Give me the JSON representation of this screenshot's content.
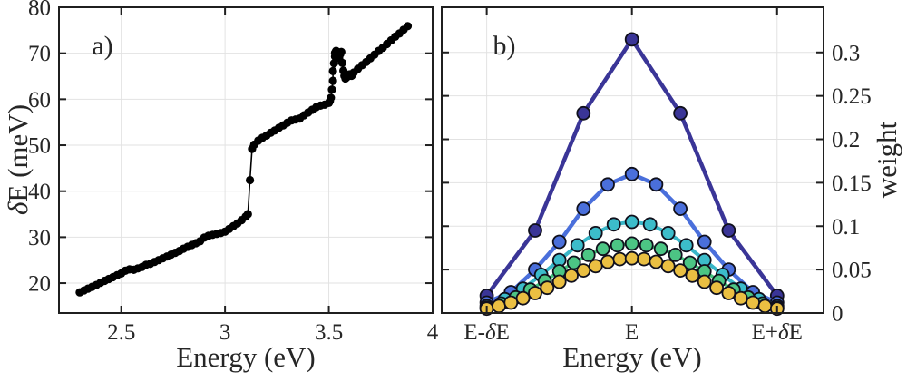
{
  "figure": {
    "bg": "#ffffff",
    "frame_color": "#1f1f1f",
    "grid_color": "#e2e2e2",
    "text_color": "#262626",
    "tick_len": 8
  },
  "chart_data": [
    {
      "id": "a",
      "type": "scatter",
      "panel_label": "a)",
      "xlabel": "Energy (eV)",
      "ylabel": "δE (meV)",
      "ylabel_side": "left",
      "xlim": [
        2.2,
        4.0
      ],
      "ylim": [
        13.5,
        80
      ],
      "xticks": [
        2.5,
        3,
        3.5,
        4
      ],
      "xtick_labels": [
        "2.5",
        "3",
        "3.5",
        "4"
      ],
      "yticks": [
        20,
        30,
        40,
        50,
        60,
        70,
        80
      ],
      "ytick_labels": [
        "20",
        "30",
        "40",
        "50",
        "60",
        "70",
        "80"
      ],
      "grid": true,
      "series": [
        {
          "name": "delta-E-vs-energy",
          "color": "#000000",
          "marker_fill": "#000000",
          "marker_edge": "none",
          "marker_radius": 4.6,
          "line_width": 1.6,
          "points": [
            [
              2.3,
              18.0
            ],
            [
              2.32,
              18.4
            ],
            [
              2.34,
              18.8
            ],
            [
              2.36,
              19.2
            ],
            [
              2.38,
              19.6
            ],
            [
              2.4,
              20.1
            ],
            [
              2.42,
              20.5
            ],
            [
              2.44,
              20.9
            ],
            [
              2.46,
              21.3
            ],
            [
              2.48,
              21.7
            ],
            [
              2.5,
              22.1
            ],
            [
              2.52,
              22.7
            ],
            [
              2.54,
              23.0
            ],
            [
              2.56,
              22.9
            ],
            [
              2.58,
              23.2
            ],
            [
              2.6,
              23.5
            ],
            [
              2.62,
              24.0
            ],
            [
              2.64,
              24.2
            ],
            [
              2.66,
              24.6
            ],
            [
              2.68,
              25.0
            ],
            [
              2.7,
              25.4
            ],
            [
              2.72,
              25.8
            ],
            [
              2.74,
              26.2
            ],
            [
              2.76,
              26.6
            ],
            [
              2.78,
              27.0
            ],
            [
              2.8,
              27.5
            ],
            [
              2.82,
              27.9
            ],
            [
              2.84,
              28.3
            ],
            [
              2.86,
              28.7
            ],
            [
              2.88,
              29.1
            ],
            [
              2.9,
              29.9
            ],
            [
              2.92,
              30.3
            ],
            [
              2.94,
              30.5
            ],
            [
              2.96,
              30.7
            ],
            [
              2.98,
              30.9
            ],
            [
              3.0,
              31.2
            ],
            [
              3.02,
              31.8
            ],
            [
              3.04,
              32.4
            ],
            [
              3.06,
              33.0
            ],
            [
              3.08,
              33.7
            ],
            [
              3.1,
              34.5
            ],
            [
              3.11,
              35.0
            ],
            [
              3.12,
              42.4
            ],
            [
              3.13,
              49.2
            ],
            [
              3.14,
              50.1
            ],
            [
              3.16,
              51.0
            ],
            [
              3.18,
              51.6
            ],
            [
              3.2,
              52.1
            ],
            [
              3.22,
              52.7
            ],
            [
              3.24,
              53.2
            ],
            [
              3.26,
              53.8
            ],
            [
              3.28,
              54.3
            ],
            [
              3.3,
              54.9
            ],
            [
              3.32,
              55.4
            ],
            [
              3.34,
              55.6
            ],
            [
              3.36,
              55.8
            ],
            [
              3.38,
              56.5
            ],
            [
              3.4,
              57.1
            ],
            [
              3.42,
              57.7
            ],
            [
              3.44,
              58.3
            ],
            [
              3.46,
              58.6
            ],
            [
              3.48,
              58.8
            ],
            [
              3.5,
              59.2
            ],
            [
              3.505,
              59.6
            ],
            [
              3.51,
              60.3
            ],
            [
              3.515,
              62.1
            ],
            [
              3.52,
              64.0
            ],
            [
              3.52,
              66.1
            ],
            [
              3.525,
              67.8
            ],
            [
              3.53,
              69.3
            ],
            [
              3.53,
              70.1
            ],
            [
              3.535,
              70.5
            ],
            [
              3.54,
              70.2
            ],
            [
              3.545,
              69.6
            ],
            [
              3.55,
              68.9
            ],
            [
              3.555,
              69.8
            ],
            [
              3.56,
              70.3
            ],
            [
              3.565,
              67.9
            ],
            [
              3.57,
              66.2
            ],
            [
              3.575,
              65.1
            ],
            [
              3.58,
              64.5
            ],
            [
              3.59,
              64.9
            ],
            [
              3.6,
              65.4
            ],
            [
              3.61,
              65.1
            ],
            [
              3.62,
              65.8
            ],
            [
              3.64,
              66.6
            ],
            [
              3.66,
              67.4
            ],
            [
              3.68,
              68.1
            ],
            [
              3.7,
              68.9
            ],
            [
              3.72,
              69.7
            ],
            [
              3.74,
              70.5
            ],
            [
              3.76,
              71.2
            ],
            [
              3.78,
              72.0
            ],
            [
              3.8,
              72.8
            ],
            [
              3.82,
              73.6
            ],
            [
              3.84,
              74.3
            ],
            [
              3.86,
              75.1
            ],
            [
              3.88,
              75.9
            ]
          ]
        }
      ]
    },
    {
      "id": "b",
      "type": "line",
      "panel_label": "b)",
      "xlabel": "Energy (eV)",
      "ylabel": "weight",
      "ylabel_side": "right",
      "xlim": [
        -1.31,
        1.32
      ],
      "ylim": [
        0,
        0.352
      ],
      "xticks": [
        -1,
        0,
        1
      ],
      "xtick_labels": [
        "E-δE",
        "E",
        "E+δE"
      ],
      "yticks": [
        0,
        0.05,
        0.1,
        0.15,
        0.2,
        0.25,
        0.3
      ],
      "ytick_labels": [
        "0",
        "0.05",
        "0.1",
        "0.15",
        "0.2",
        "0.25",
        "0.3"
      ],
      "grid": true,
      "x_span": [
        -1,
        1
      ],
      "marker_edge": "#10101c",
      "marker_edge_width": 1.8,
      "marker_radius": 7,
      "series": [
        {
          "name": "weights-7-points",
          "color": "#3a3597",
          "marker_fill": "#3a3597",
          "line_width": 4.5,
          "values": [
            0.02,
            0.095,
            0.23,
            0.315,
            0.23,
            0.095,
            0.02
          ]
        },
        {
          "name": "weights-13-points",
          "color": "#4a6fdb",
          "marker_fill": "#4a6fdb",
          "line_width": 4.5,
          "values": [
            0.012,
            0.024,
            0.05,
            0.082,
            0.12,
            0.148,
            0.16,
            0.148,
            0.12,
            0.082,
            0.05,
            0.024,
            0.012
          ]
        },
        {
          "name": "weights-17-points",
          "color": "#38b6c8",
          "marker_fill": "#3cbcca",
          "line_width": 4,
          "values": [
            0.008,
            0.016,
            0.028,
            0.044,
            0.061,
            0.078,
            0.092,
            0.102,
            0.105,
            0.102,
            0.092,
            0.078,
            0.061,
            0.044,
            0.028,
            0.016,
            0.008
          ]
        },
        {
          "name": "weights-21-points",
          "color": "#44c17c",
          "marker_fill": "#4cc584",
          "line_width": 3.5,
          "values": [
            0.006,
            0.011,
            0.018,
            0.027,
            0.037,
            0.048,
            0.058,
            0.067,
            0.074,
            0.078,
            0.08,
            0.078,
            0.074,
            0.067,
            0.058,
            0.048,
            0.037,
            0.027,
            0.018,
            0.011,
            0.006
          ]
        },
        {
          "name": "weights-25-points",
          "color": "#e6ba3e",
          "marker_fill": "#eabf42",
          "line_width": 3,
          "values": [
            0.005,
            0.008,
            0.012,
            0.017,
            0.023,
            0.029,
            0.036,
            0.043,
            0.049,
            0.054,
            0.059,
            0.062,
            0.063,
            0.062,
            0.059,
            0.054,
            0.049,
            0.043,
            0.036,
            0.029,
            0.023,
            0.017,
            0.012,
            0.008,
            0.005
          ]
        }
      ]
    }
  ]
}
